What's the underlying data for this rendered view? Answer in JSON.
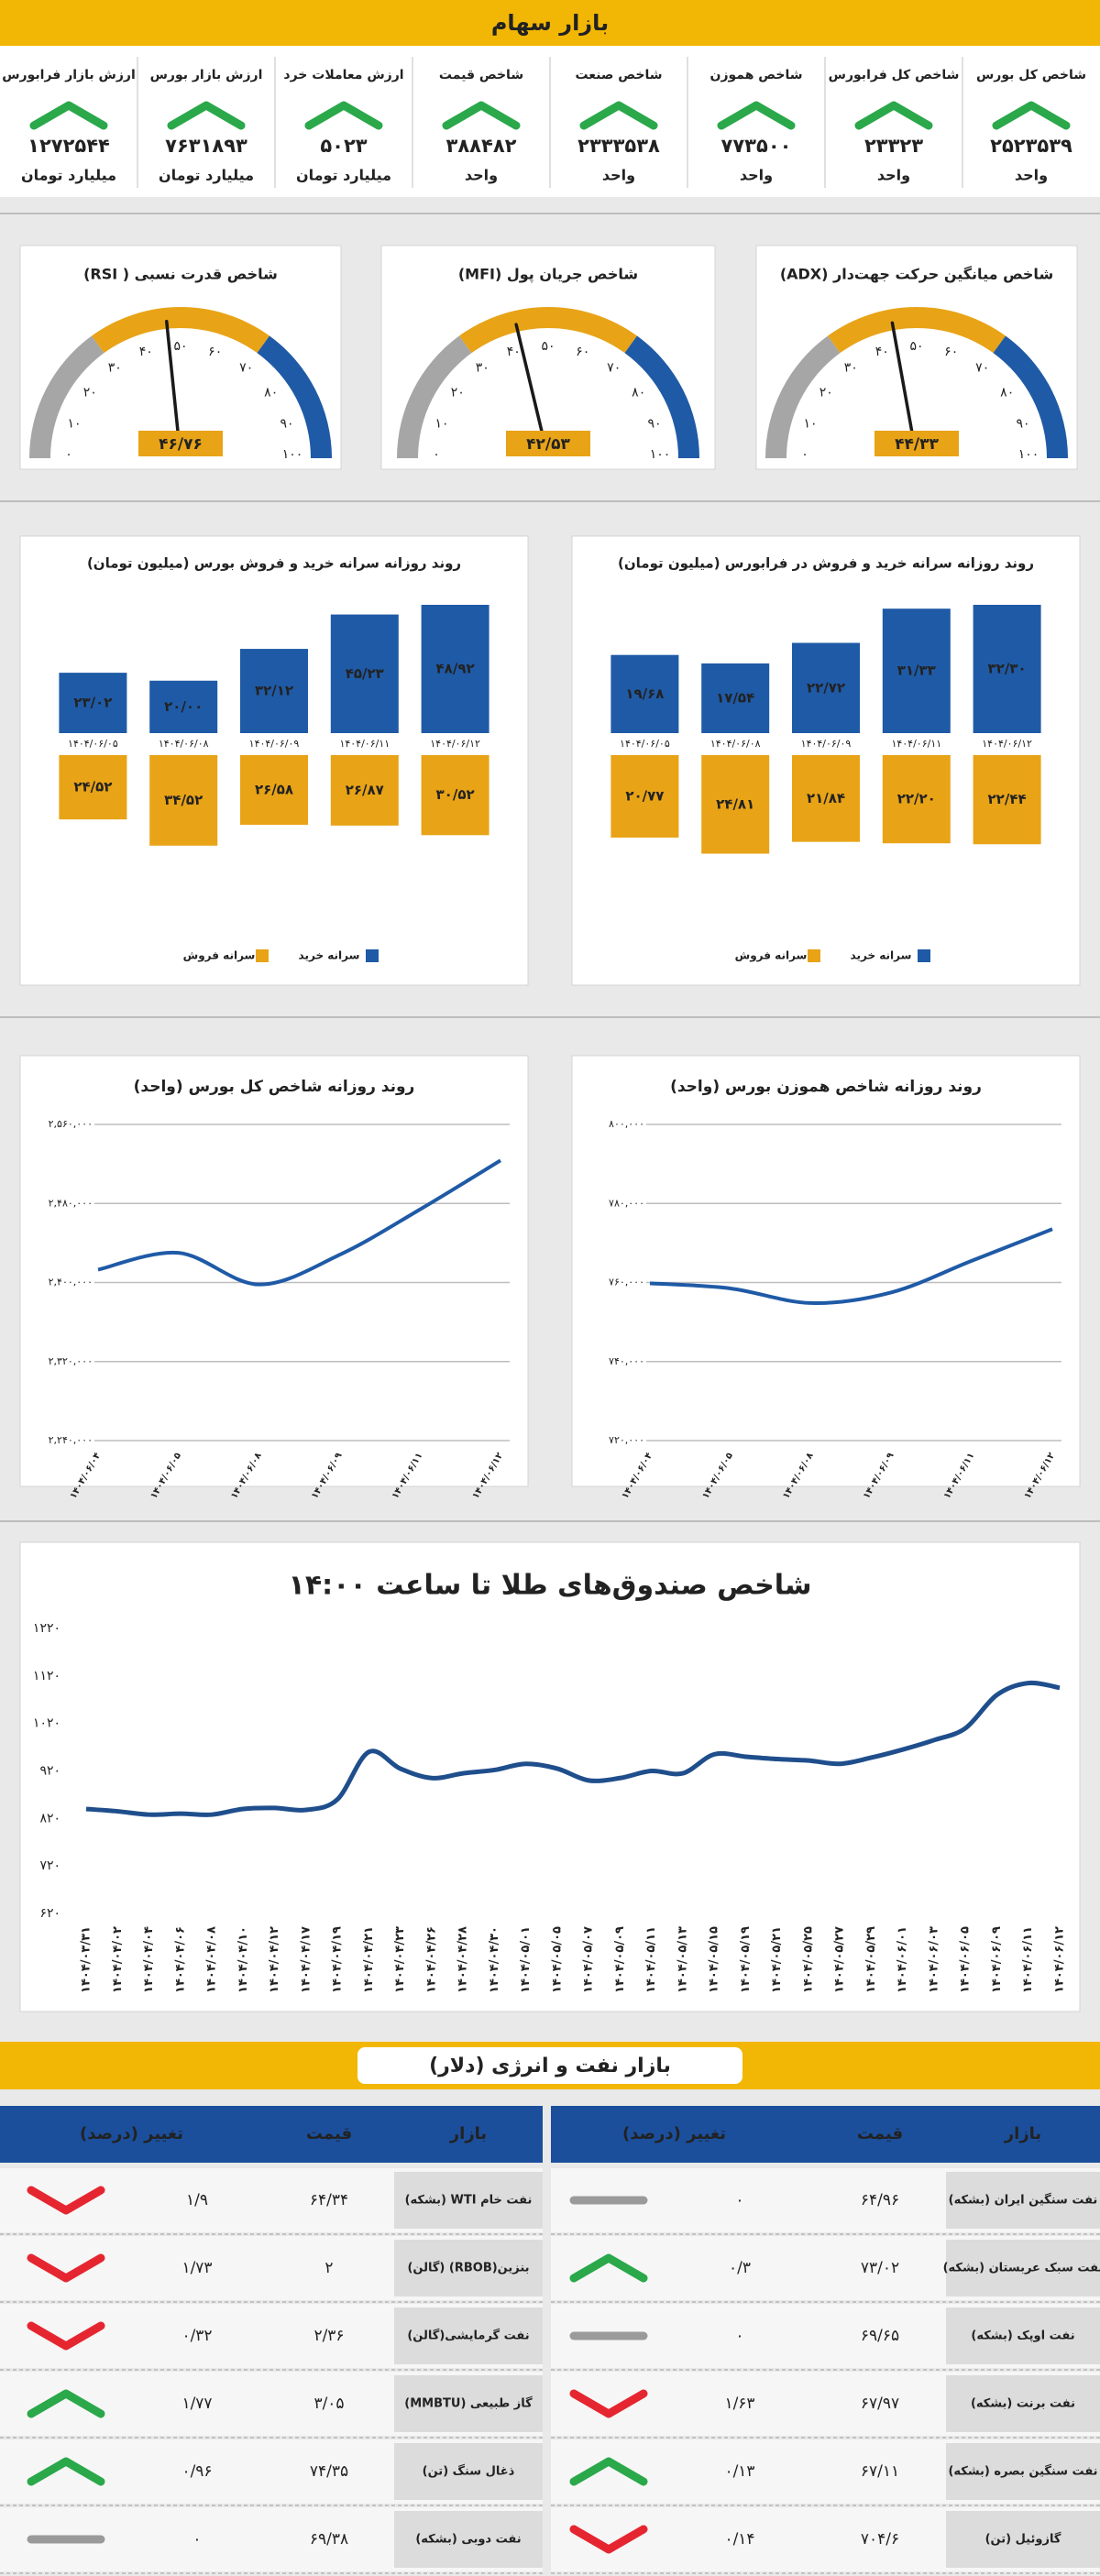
{
  "header": {
    "title": "بازار سهام"
  },
  "indices": [
    {
      "name": "شاخص کل بورس",
      "value": "۲۵۲۳۵۳۹",
      "unit": "واحد",
      "direction": "up"
    },
    {
      "name": "شاخص کل فرابورس",
      "value": "۲۳۳۲۳",
      "unit": "واحد",
      "direction": "up"
    },
    {
      "name": "شاخص هموزن",
      "value": "۷۷۳۵۰۰",
      "unit": "واحد",
      "direction": "up"
    },
    {
      "name": "شاخص صنعت",
      "value": "۲۳۳۳۵۳۸",
      "unit": "واحد",
      "direction": "up"
    },
    {
      "name": "شاخص قیمت",
      "value": "۳۸۸۴۸۲",
      "unit": "واحد",
      "direction": "up"
    },
    {
      "name": "ارزش معاملات خرد",
      "value": "۵۰۲۳",
      "unit": "میلیارد تومان",
      "direction": "up"
    },
    {
      "name": "ارزش بازار بورس",
      "value": "۷۶۳۱۸۹۳",
      "unit": "میلیارد تومان",
      "direction": "up"
    },
    {
      "name": "ارزش بازار فرابورس",
      "value": "۱۲۷۲۵۴۴",
      "unit": "میلیارد تومان",
      "direction": "up"
    }
  ],
  "chart_data": [
    {
      "type": "gauge",
      "title": "شاخص میانگین حرکت جهت‌دار (ADX)",
      "value": 44.33,
      "value_label": "۴۴/۳۳",
      "xlim": [
        0,
        100
      ],
      "xticks": [
        {
          "value": 0,
          "label": "۰"
        },
        {
          "value": 10,
          "label": "۱۰"
        },
        {
          "value": 20,
          "label": "۲۰"
        },
        {
          "value": 30,
          "label": "۳۰"
        },
        {
          "value": 40,
          "label": "۴۰"
        },
        {
          "value": 50,
          "label": "۵۰"
        },
        {
          "value": 60,
          "label": "۶۰"
        },
        {
          "value": 70,
          "label": "۷۰"
        },
        {
          "value": 80,
          "label": "۸۰"
        },
        {
          "value": 90,
          "label": "۹۰"
        },
        {
          "value": 100,
          "label": "۱۰۰"
        }
      ],
      "bands": [
        {
          "from": 0,
          "to": 30,
          "color": "#a6a6a6"
        },
        {
          "from": 30,
          "to": 70,
          "color": "#e8a317"
        },
        {
          "from": 70,
          "to": 100,
          "color": "#1f5aa6"
        }
      ]
    },
    {
      "type": "gauge",
      "title": "شاخص جریان پول (MFI)",
      "value": 42.53,
      "value_label": "۴۲/۵۳",
      "xlim": [
        0,
        100
      ],
      "xticks": [
        {
          "value": 0,
          "label": "۰"
        },
        {
          "value": 10,
          "label": "۱۰"
        },
        {
          "value": 20,
          "label": "۲۰"
        },
        {
          "value": 30,
          "label": "۳۰"
        },
        {
          "value": 40,
          "label": "۴۰"
        },
        {
          "value": 50,
          "label": "۵۰"
        },
        {
          "value": 60,
          "label": "۶۰"
        },
        {
          "value": 70,
          "label": "۷۰"
        },
        {
          "value": 80,
          "label": "۸۰"
        },
        {
          "value": 90,
          "label": "۹۰"
        },
        {
          "value": 100,
          "label": "۱۰۰"
        }
      ],
      "bands": [
        {
          "from": 0,
          "to": 30,
          "color": "#a6a6a6"
        },
        {
          "from": 30,
          "to": 70,
          "color": "#e8a317"
        },
        {
          "from": 70,
          "to": 100,
          "color": "#1f5aa6"
        }
      ]
    },
    {
      "type": "gauge",
      "title": "شاخص قدرت نسبی ( RSI)",
      "value": 46.76,
      "value_label": "۴۶/۷۶",
      "xlim": [
        0,
        100
      ],
      "xticks": [
        {
          "value": 0,
          "label": "۰"
        },
        {
          "value": 10,
          "label": "۱۰"
        },
        {
          "value": 20,
          "label": "۲۰"
        },
        {
          "value": 30,
          "label": "۳۰"
        },
        {
          "value": 40,
          "label": "۴۰"
        },
        {
          "value": 50,
          "label": "۵۰"
        },
        {
          "value": 60,
          "label": "۶۰"
        },
        {
          "value": 70,
          "label": "۷۰"
        },
        {
          "value": 80,
          "label": "۸۰"
        },
        {
          "value": 90,
          "label": "۹۰"
        },
        {
          "value": 100,
          "label": "۱۰۰"
        }
      ],
      "bands": [
        {
          "from": 0,
          "to": 30,
          "color": "#a6a6a6"
        },
        {
          "from": 30,
          "to": 70,
          "color": "#e8a317"
        },
        {
          "from": 70,
          "to": 100,
          "color": "#1f5aa6"
        }
      ]
    },
    {
      "type": "bar",
      "title": "روند روزانه سرانه خرید و فروش در فرابورس (میلیون تومان)",
      "categories": [
        "۱۴۰۴/۰۶/۰۵",
        "۱۴۰۴/۰۶/۰۸",
        "۱۴۰۴/۰۶/۰۹",
        "۱۴۰۴/۰۶/۱۱",
        "۱۴۰۴/۰۶/۱۲"
      ],
      "series": [
        {
          "name": "سرانه خرید",
          "color": "#1f5aa6",
          "values": [
            19.68,
            17.54,
            22.72,
            31.33,
            32.3
          ],
          "value_labels": [
            "۱۹/۶۸",
            "۱۷/۵۴",
            "۲۲/۷۲",
            "۳۱/۳۳",
            "۳۲/۳۰"
          ]
        },
        {
          "name": "سرانه فروش",
          "color": "#e8a317",
          "values": [
            20.77,
            24.81,
            21.84,
            22.2,
            22.44
          ],
          "value_labels": [
            "۲۰/۷۷",
            "۲۴/۸۱",
            "۲۱/۸۴",
            "۲۲/۲۰",
            "۲۲/۴۴"
          ]
        }
      ]
    },
    {
      "type": "bar",
      "title": "روند روزانه سرانه خرید و فروش بورس (میلیون تومان)",
      "categories": [
        "۱۴۰۴/۰۶/۰۵",
        "۱۴۰۴/۰۶/۰۸",
        "۱۴۰۴/۰۶/۰۹",
        "۱۴۰۴/۰۶/۱۱",
        "۱۴۰۴/۰۶/۱۲"
      ],
      "series": [
        {
          "name": "سرانه خرید",
          "color": "#1f5aa6",
          "values": [
            23.02,
            20.0,
            32.12,
            45.23,
            48.92
          ],
          "value_labels": [
            "۲۳/۰۲",
            "۲۰/۰۰",
            "۳۲/۱۲",
            "۴۵/۲۳",
            "۴۸/۹۲"
          ]
        },
        {
          "name": "سرانه فروش",
          "color": "#e8a317",
          "values": [
            24.52,
            34.52,
            26.58,
            26.87,
            30.52
          ],
          "value_labels": [
            "۲۴/۵۲",
            "۳۴/۵۲",
            "۲۶/۵۸",
            "۲۶/۸۷",
            "۳۰/۵۲"
          ]
        }
      ]
    },
    {
      "type": "line",
      "title": "روند روزانه شاخص هموزن بورس (واحد)",
      "categories": [
        "۱۴۰۴/۰۶/۰۴",
        "۱۴۰۴/۰۶/۰۵",
        "۱۴۰۴/۰۶/۰۸",
        "۱۴۰۴/۰۶/۰۹",
        "۱۴۰۴/۰۶/۱۱",
        "۱۴۰۴/۰۶/۱۲"
      ],
      "values": [
        759800,
        758500,
        754800,
        757500,
        765500,
        773500
      ],
      "color": "#1f5aa6",
      "ylim": [
        720000,
        800000
      ],
      "yticks": [
        {
          "value": 720000,
          "label": "۷۲۰,۰۰۰"
        },
        {
          "value": 740000,
          "label": "۷۴۰,۰۰۰"
        },
        {
          "value": 760000,
          "label": "۷۶۰,۰۰۰"
        },
        {
          "value": 780000,
          "label": "۷۸۰,۰۰۰"
        },
        {
          "value": 800000,
          "label": "۸۰۰,۰۰۰"
        }
      ],
      "grid": true
    },
    {
      "type": "line",
      "title": "روند روزانه شاخص کل بورس (واحد)",
      "categories": [
        "۱۴۰۴/۰۶/۰۴",
        "۱۴۰۴/۰۶/۰۵",
        "۱۴۰۴/۰۶/۰۸",
        "۱۴۰۴/۰۶/۰۹",
        "۱۴۰۴/۰۶/۱۱",
        "۱۴۰۴/۰۶/۱۲"
      ],
      "values": [
        2413000,
        2430000,
        2398000,
        2428000,
        2474000,
        2523539
      ],
      "color": "#1f5aa6",
      "ylim": [
        2240000,
        2560000
      ],
      "yticks": [
        {
          "value": 2240000,
          "label": "۲,۲۴۰,۰۰۰"
        },
        {
          "value": 2320000,
          "label": "۲,۳۲۰,۰۰۰"
        },
        {
          "value": 2400000,
          "label": "۲,۴۰۰,۰۰۰"
        },
        {
          "value": 2480000,
          "label": "۲,۴۸۰,۰۰۰"
        },
        {
          "value": 2560000,
          "label": "۲,۵۶۰,۰۰۰"
        }
      ],
      "grid": true
    },
    {
      "type": "line",
      "title": "شاخص صندوق‌های طلا تا ساعت ۱۴:۰۰",
      "categories": [
        "۱۴۰۴/۰۳/۳۱",
        "۱۴۰۴/۰۴/۰۲",
        "۱۴۰۴/۰۴/۰۴",
        "۱۴۰۴/۰۴/۰۶",
        "۱۴۰۴/۰۴/۰۸",
        "۱۴۰۴/۰۴/۱۰",
        "۱۴۰۴/۰۴/۱۲",
        "۱۴۰۴/۰۴/۱۷",
        "۱۴۰۴/۰۴/۱۹",
        "۱۴۰۴/۰۴/۲۱",
        "۱۴۰۴/۰۴/۲۳",
        "۱۴۰۴/۰۴/۲۶",
        "۱۴۰۴/۰۴/۲۸",
        "۱۴۰۴/۰۴/۳۰",
        "۱۴۰۴/۰۵/۰۱",
        "۱۴۰۴/۰۵/۰۵",
        "۱۴۰۴/۰۵/۰۷",
        "۱۴۰۴/۰۵/۰۹",
        "۱۴۰۴/۰۵/۱۱",
        "۱۴۰۴/۰۵/۱۳",
        "۱۴۰۴/۰۵/۱۵",
        "۱۴۰۴/۰۵/۱۹",
        "۱۴۰۴/۰۵/۲۱",
        "۱۴۰۴/۰۵/۲۵",
        "۱۴۰۴/۰۵/۲۷",
        "۱۴۰۴/۰۵/۲۹",
        "۱۴۰۴/۰۶/۰۱",
        "۱۴۰۴/۰۶/۰۳",
        "۱۴۰۴/۰۶/۰۵",
        "۱۴۰۴/۰۶/۰۹",
        "۱۴۰۴/۰۶/۱۱",
        "۱۴۰۴/۰۶/۱۲"
      ],
      "values": [
        840,
        835,
        828,
        830,
        828,
        840,
        842,
        838,
        860,
        960,
        925,
        905,
        915,
        922,
        935,
        925,
        900,
        905,
        920,
        915,
        955,
        950,
        945,
        942,
        935,
        948,
        965,
        985,
        1010,
        1080,
        1105,
        1095
      ],
      "color": "#1f4e8c",
      "ylim": [
        620,
        1220
      ],
      "yticks": [
        {
          "value": 620,
          "label": "۶۲۰"
        },
        {
          "value": 720,
          "label": "۷۲۰"
        },
        {
          "value": 820,
          "label": "۸۲۰"
        },
        {
          "value": 920,
          "label": "۹۲۰"
        },
        {
          "value": 1020,
          "label": "۱۰۲۰"
        },
        {
          "value": 1120,
          "label": "۱۱۲۰"
        },
        {
          "value": 1220,
          "label": "۱۲۲۰"
        }
      ],
      "grid": false
    }
  ],
  "energy": {
    "title": "بازار نفت و انرژی (دلار)",
    "columns": [
      "بازار",
      "قیمت",
      "تغییر (درصد)"
    ],
    "tables": [
      {
        "rows": [
          {
            "market": "نفت سنگین ایران (بشکه)",
            "price": "۶۴/۹۶",
            "change": "۰",
            "direction": "flat"
          },
          {
            "market": "نفت سبک عربستان (بشکه)",
            "price": "۷۳/۰۲",
            "change": "۰/۳",
            "direction": "up"
          },
          {
            "market": "نفت اوپک (بشکه)",
            "price": "۶۹/۶۵",
            "change": "۰",
            "direction": "flat"
          },
          {
            "market": "نفت برنت (بشکه)",
            "price": "۶۷/۹۷",
            "change": "۱/۶۳",
            "direction": "down"
          },
          {
            "market": "نفت سنگین بصره (بشکه)",
            "price": "۶۷/۱۱",
            "change": "۰/۱۳",
            "direction": "up"
          },
          {
            "market": "گازوئیل (تن)",
            "price": "۷۰۴/۶",
            "change": "۰/۱۴",
            "direction": "down"
          }
        ]
      },
      {
        "rows": [
          {
            "market": "نفت خام WTI (بشکه)",
            "price": "۶۴/۳۴",
            "change": "۱/۹",
            "direction": "down"
          },
          {
            "market": "بنزین(RBOB) (گالن)",
            "price": "۲",
            "change": "۱/۷۳",
            "direction": "down"
          },
          {
            "market": "نفت گرمایشی(گالن)",
            "price": "۲/۳۶",
            "change": "۰/۳۲",
            "direction": "down"
          },
          {
            "market": "گاز طبیعی (MMBTU)",
            "price": "۳/۰۵",
            "change": "۱/۷۷",
            "direction": "up"
          },
          {
            "market": "ذغال سنگ (تن)",
            "price": "۷۴/۳۵",
            "change": "۰/۹۶",
            "direction": "up"
          },
          {
            "market": "نفت دوبی (بشکه)",
            "price": "۶۹/۳۸",
            "change": "۰",
            "direction": "flat"
          }
        ]
      }
    ]
  }
}
